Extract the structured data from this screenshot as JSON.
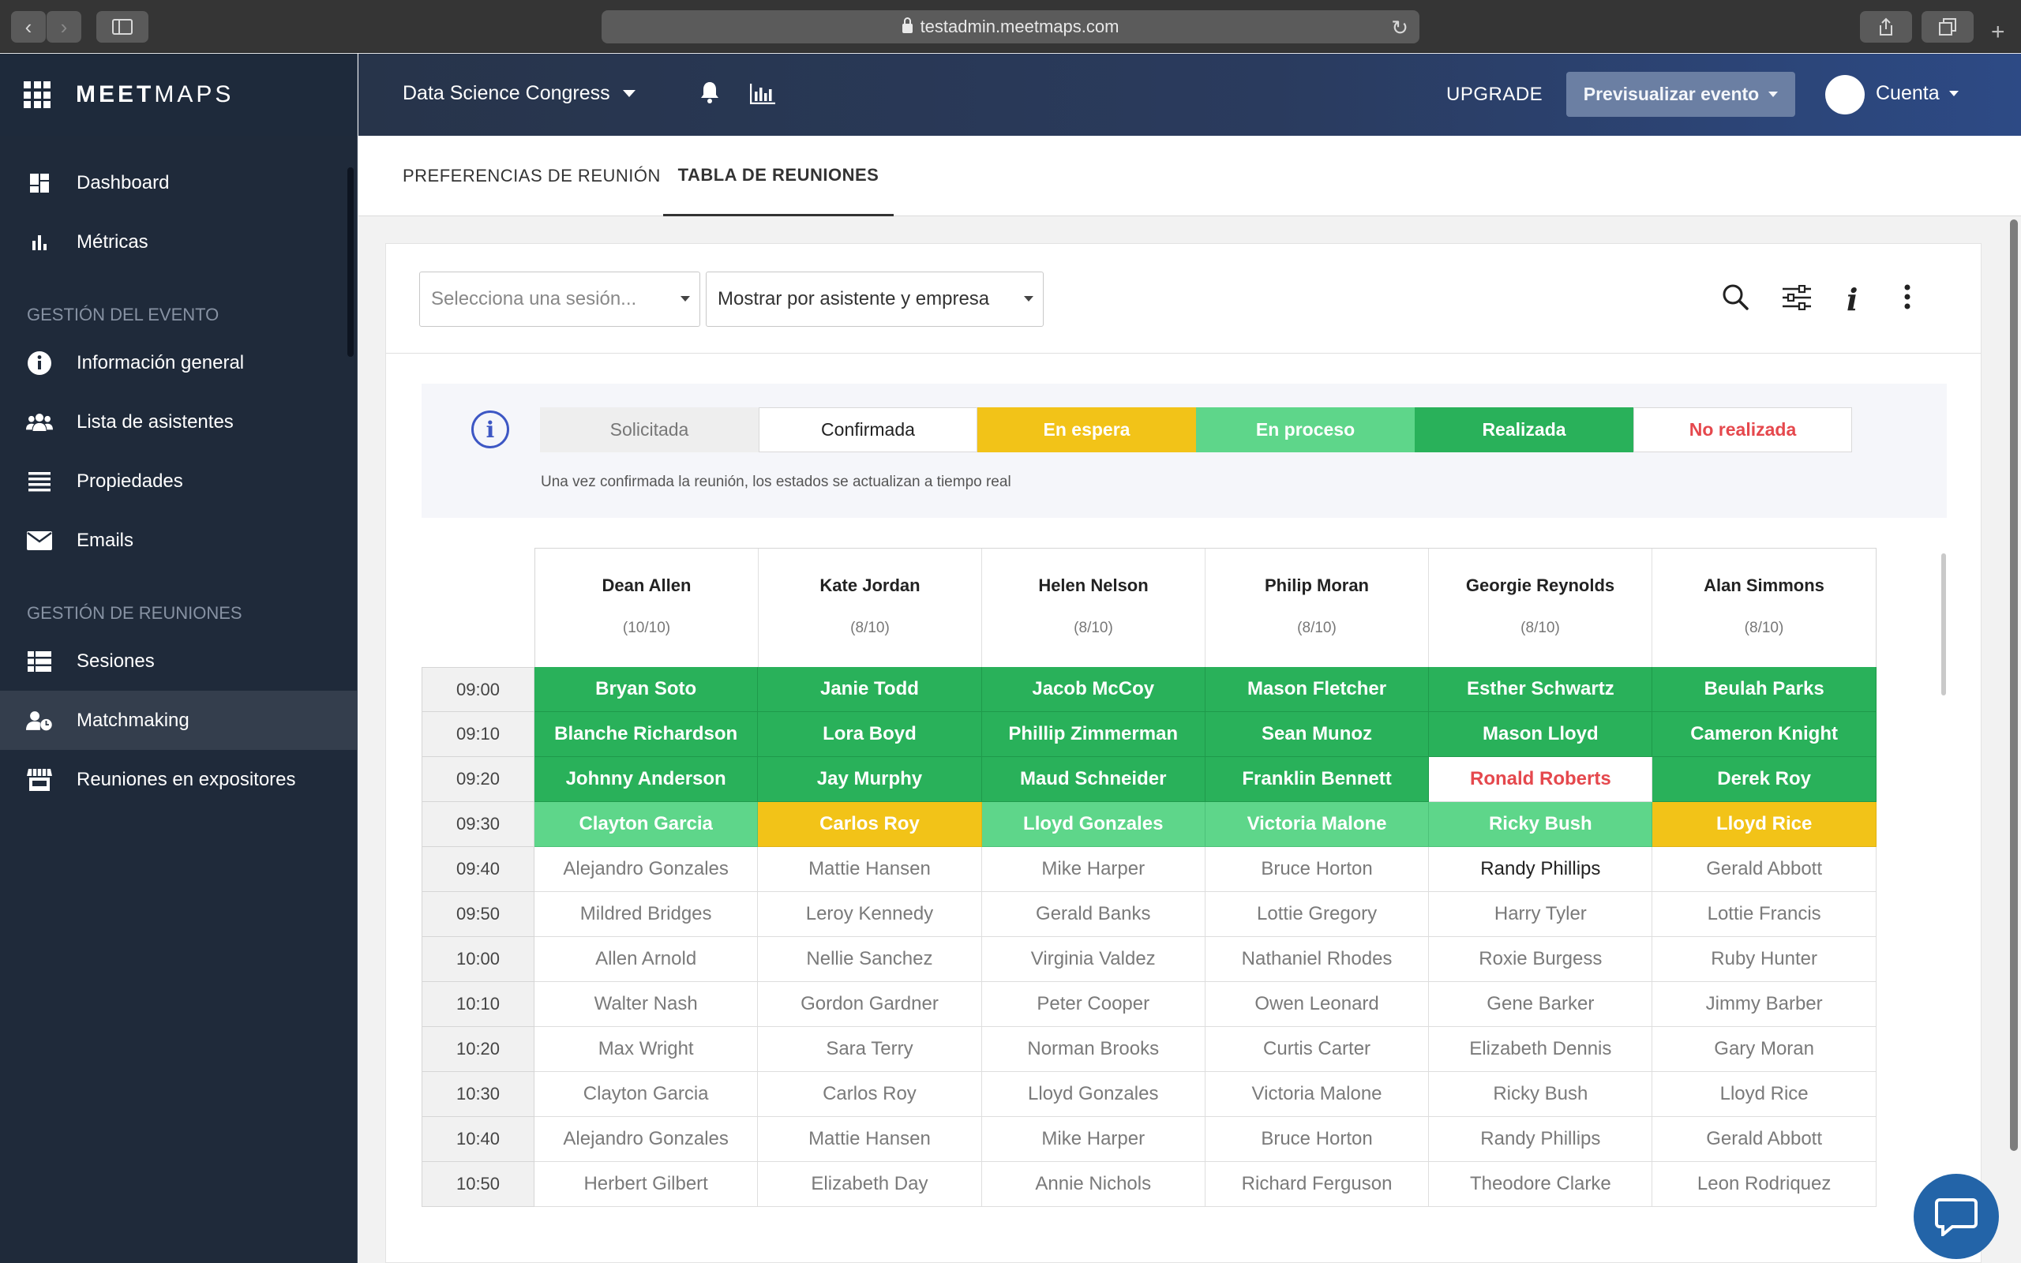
{
  "browser": {
    "url": "testadmin.meetmaps.com"
  },
  "sidebar": {
    "brand_bold": "MEET",
    "brand_light": "MAPS",
    "items_top": [
      {
        "label": "Dashboard",
        "icon": "dashboard-icon"
      },
      {
        "label": "Métricas",
        "icon": "bar-chart-icon"
      }
    ],
    "section_event": "GESTIÓN DEL EVENTO",
    "items_event": [
      {
        "label": "Información general",
        "icon": "info-icon"
      },
      {
        "label": "Lista de asistentes",
        "icon": "users-icon"
      },
      {
        "label": "Propiedades",
        "icon": "list-icon"
      },
      {
        "label": "Emails",
        "icon": "envelope-icon"
      }
    ],
    "section_meetings": "GESTIÓN DE REUNIONES",
    "items_meetings": [
      {
        "label": "Sesiones",
        "icon": "table-list-icon"
      },
      {
        "label": "Matchmaking",
        "icon": "user-clock-icon",
        "active": true
      },
      {
        "label": "Reuniones en expositores",
        "icon": "store-icon"
      }
    ]
  },
  "header": {
    "event_name": "Data Science Congress",
    "upgrade": "UPGRADE",
    "preview": "Previsualizar evento",
    "account": "Cuenta"
  },
  "tabs": [
    {
      "label": "PREFERENCIAS DE REUNIÓN",
      "active": false
    },
    {
      "label": "TABLA DE REUNIONES",
      "active": true
    }
  ],
  "filters": {
    "session_placeholder": "Selecciona una sesión...",
    "view_mode": "Mostrar por asistente y empresa"
  },
  "legend": {
    "items": [
      {
        "label": "Solicitada",
        "bg": "#eeeeee",
        "color": "#777777"
      },
      {
        "label": "Confirmada",
        "bg": "#ffffff",
        "color": "#222222"
      },
      {
        "label": "En espera",
        "bg": "#f2c318",
        "color": "#ffffff"
      },
      {
        "label": "En proceso",
        "bg": "#5ed68a",
        "color": "#ffffff"
      },
      {
        "label": "Realizada",
        "bg": "#29b15a",
        "color": "#ffffff"
      },
      {
        "label": "No realizada",
        "bg": "#ffffff",
        "color": "#e5484d"
      }
    ],
    "note": "Una vez confirmada la reunión, los estados se actualizan a tiempo real"
  },
  "table": {
    "columns": [
      {
        "name": "Dean Allen",
        "count": "(10/10)"
      },
      {
        "name": "Kate Jordan",
        "count": "(8/10)"
      },
      {
        "name": "Helen Nelson",
        "count": "(8/10)"
      },
      {
        "name": "Philip Moran",
        "count": "(8/10)"
      },
      {
        "name": "Georgie Reynolds",
        "count": "(8/10)"
      },
      {
        "name": "Alan Simmons",
        "count": "(8/10)"
      }
    ],
    "rows": [
      {
        "time": "09:00",
        "cells": [
          {
            "name": "Bryan Soto",
            "status": "realizada"
          },
          {
            "name": "Janie Todd",
            "status": "realizada"
          },
          {
            "name": "Jacob McCoy",
            "status": "realizada"
          },
          {
            "name": "Mason Fletcher",
            "status": "realizada"
          },
          {
            "name": "Esther Schwartz",
            "status": "realizada"
          },
          {
            "name": "Beulah Parks",
            "status": "realizada"
          }
        ]
      },
      {
        "time": "09:10",
        "cells": [
          {
            "name": "Blanche Richardson",
            "status": "realizada"
          },
          {
            "name": "Lora Boyd",
            "status": "realizada"
          },
          {
            "name": "Phillip Zimmerman",
            "status": "realizada"
          },
          {
            "name": "Sean Munoz",
            "status": "realizada"
          },
          {
            "name": "Mason Lloyd",
            "status": "realizada"
          },
          {
            "name": "Cameron Knight",
            "status": "realizada"
          }
        ]
      },
      {
        "time": "09:20",
        "cells": [
          {
            "name": "Johnny Anderson",
            "status": "realizada"
          },
          {
            "name": "Jay Murphy",
            "status": "realizada"
          },
          {
            "name": "Maud Schneider",
            "status": "realizada"
          },
          {
            "name": "Franklin Bennett",
            "status": "realizada"
          },
          {
            "name": "Ronald Roberts",
            "status": "norealizada"
          },
          {
            "name": "Derek Roy",
            "status": "realizada"
          }
        ]
      },
      {
        "time": "09:30",
        "cells": [
          {
            "name": "Clayton Garcia",
            "status": "enproceso"
          },
          {
            "name": "Carlos Roy",
            "status": "enespera"
          },
          {
            "name": "Lloyd Gonzales",
            "status": "enproceso"
          },
          {
            "name": "Victoria Malone",
            "status": "enproceso"
          },
          {
            "name": "Ricky Bush",
            "status": "enproceso"
          },
          {
            "name": "Lloyd Rice",
            "status": "enespera"
          }
        ]
      },
      {
        "time": "09:40",
        "cells": [
          {
            "name": "Alejandro Gonzales",
            "status": "solicitada"
          },
          {
            "name": "Mattie Hansen",
            "status": "solicitada"
          },
          {
            "name": "Mike Harper",
            "status": "solicitada"
          },
          {
            "name": "Bruce Horton",
            "status": "solicitada"
          },
          {
            "name": "Randy Phillips",
            "status": "confirmada"
          },
          {
            "name": "Gerald Abbott",
            "status": "solicitada"
          }
        ]
      },
      {
        "time": "09:50",
        "cells": [
          {
            "name": "Mildred Bridges",
            "status": "solicitada"
          },
          {
            "name": "Leroy Kennedy",
            "status": "solicitada"
          },
          {
            "name": "Gerald Banks",
            "status": "solicitada"
          },
          {
            "name": "Lottie Gregory",
            "status": "solicitada"
          },
          {
            "name": "Harry Tyler",
            "status": "solicitada"
          },
          {
            "name": "Lottie Francis",
            "status": "solicitada"
          }
        ]
      },
      {
        "time": "10:00",
        "cells": [
          {
            "name": "Allen Arnold",
            "status": "solicitada"
          },
          {
            "name": "Nellie Sanchez",
            "status": "solicitada"
          },
          {
            "name": "Virginia Valdez",
            "status": "solicitada"
          },
          {
            "name": "Nathaniel Rhodes",
            "status": "solicitada"
          },
          {
            "name": "Roxie Burgess",
            "status": "solicitada"
          },
          {
            "name": "Ruby Hunter",
            "status": "solicitada"
          }
        ]
      },
      {
        "time": "10:10",
        "cells": [
          {
            "name": "Walter Nash",
            "status": "solicitada"
          },
          {
            "name": "Gordon Gardner",
            "status": "solicitada"
          },
          {
            "name": "Peter Cooper",
            "status": "solicitada"
          },
          {
            "name": "Owen Leonard",
            "status": "solicitada"
          },
          {
            "name": "Gene Barker",
            "status": "solicitada"
          },
          {
            "name": "Jimmy Barber",
            "status": "solicitada"
          }
        ]
      },
      {
        "time": "10:20",
        "cells": [
          {
            "name": "Max Wright",
            "status": "solicitada"
          },
          {
            "name": "Sara Terry",
            "status": "solicitada"
          },
          {
            "name": "Norman Brooks",
            "status": "solicitada"
          },
          {
            "name": "Curtis Carter",
            "status": "solicitada"
          },
          {
            "name": "Elizabeth Dennis",
            "status": "solicitada"
          },
          {
            "name": "Gary Moran",
            "status": "solicitada"
          }
        ]
      },
      {
        "time": "10:30",
        "cells": [
          {
            "name": "Clayton Garcia",
            "status": "solicitada"
          },
          {
            "name": "Carlos Roy",
            "status": "solicitada"
          },
          {
            "name": "Lloyd Gonzales",
            "status": "solicitada"
          },
          {
            "name": "Victoria Malone",
            "status": "solicitada"
          },
          {
            "name": "Ricky Bush",
            "status": "solicitada"
          },
          {
            "name": "Lloyd Rice",
            "status": "solicitada"
          }
        ]
      },
      {
        "time": "10:40",
        "cells": [
          {
            "name": "Alejandro Gonzales",
            "status": "solicitada"
          },
          {
            "name": "Mattie Hansen",
            "status": "solicitada"
          },
          {
            "name": "Mike Harper",
            "status": "solicitada"
          },
          {
            "name": "Bruce Horton",
            "status": "solicitada"
          },
          {
            "name": "Randy Phillips",
            "status": "solicitada"
          },
          {
            "name": "Gerald Abbott",
            "status": "solicitada"
          }
        ]
      },
      {
        "time": "10:50",
        "cells": [
          {
            "name": "Herbert Gilbert",
            "status": "solicitada"
          },
          {
            "name": "Elizabeth Day",
            "status": "solicitada"
          },
          {
            "name": "Annie Nichols",
            "status": "solicitada"
          },
          {
            "name": "Richard Ferguson",
            "status": "solicitada"
          },
          {
            "name": "Theodore Clarke",
            "status": "solicitada"
          },
          {
            "name": "Leon Rodriquez",
            "status": "solicitada"
          }
        ]
      }
    ]
  },
  "colors": {
    "sidebar_bg": "#1f2a3a",
    "realizada": "#29b15a",
    "en_proceso": "#5ed68a",
    "en_espera": "#f2c318",
    "no_realizada": "#e5484d",
    "accent": "#3d57c4"
  }
}
